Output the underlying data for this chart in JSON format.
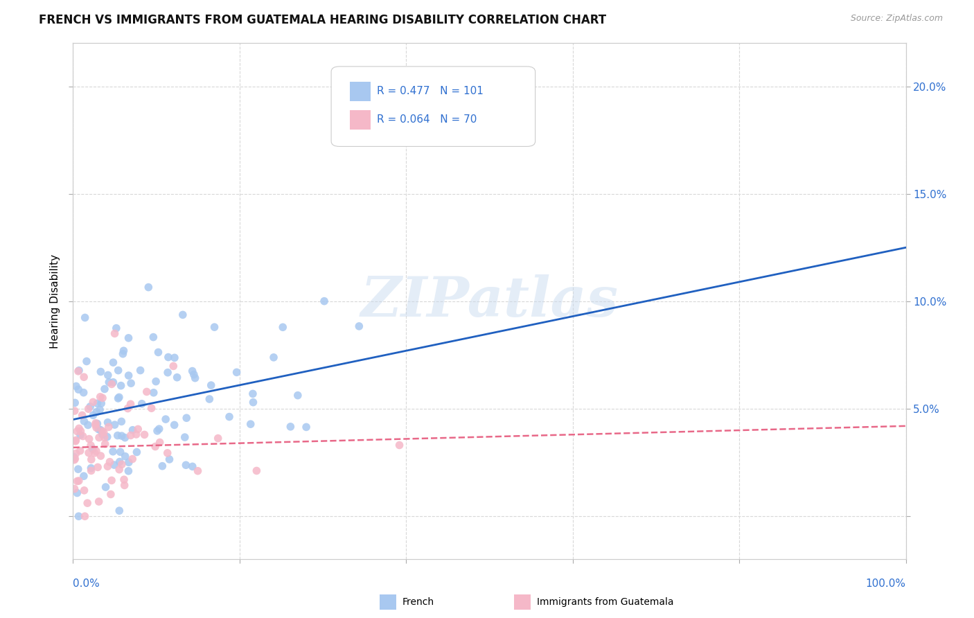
{
  "title": "FRENCH VS IMMIGRANTS FROM GUATEMALA HEARING DISABILITY CORRELATION CHART",
  "source": "Source: ZipAtlas.com",
  "ylabel": "Hearing Disability",
  "watermark": "ZIPatlas",
  "french_R": 0.477,
  "french_N": 101,
  "guatemala_R": 0.064,
  "guatemala_N": 70,
  "french_color": "#a8c8f0",
  "french_edge_color": "#a8c8f0",
  "guatemala_color": "#f5b8c8",
  "guatemala_edge_color": "#f5b8c8",
  "french_line_color": "#2060c0",
  "guatemala_line_color": "#e86888",
  "right_axis_color": "#3070d0",
  "background_color": "#ffffff",
  "grid_color": "#d8d8d8",
  "title_fontsize": 12,
  "axis_label_fontsize": 11,
  "tick_fontsize": 11,
  "xlim": [
    0,
    100
  ],
  "ylim": [
    -2,
    22
  ],
  "yticks": [
    0,
    5,
    10,
    15,
    20
  ],
  "xticks": [
    0,
    20,
    40,
    60,
    80,
    100
  ],
  "french_line_x0": 0,
  "french_line_y0": 4.5,
  "french_line_x1": 100,
  "french_line_y1": 12.5,
  "guatemala_line_x0": 0,
  "guatemala_line_y0": 3.2,
  "guatemala_line_x1": 100,
  "guatemala_line_y1": 4.2
}
